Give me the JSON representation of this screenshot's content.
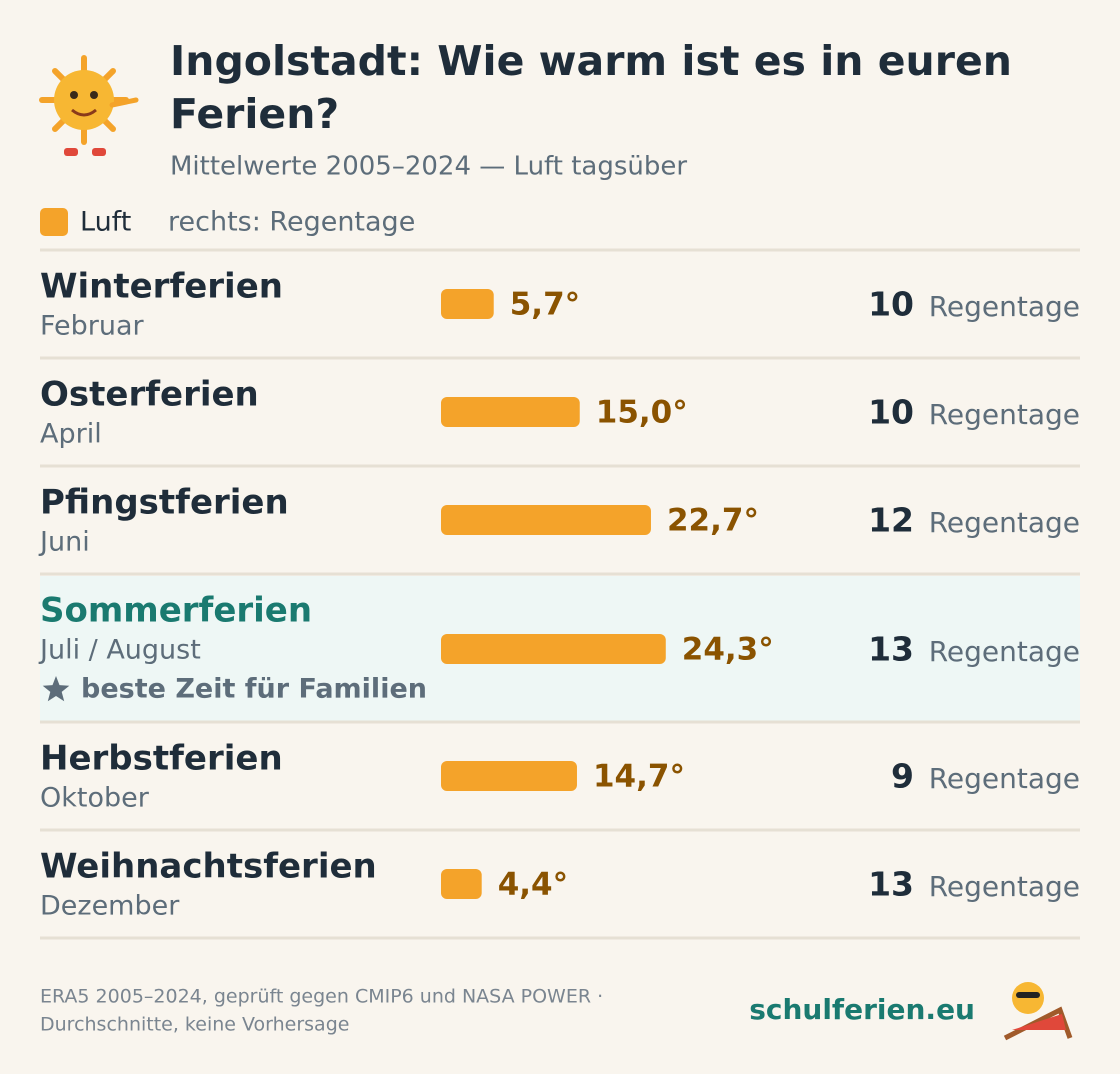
{
  "header": {
    "title_lines": [
      "Ingolstadt: Wie warm ist es in euren",
      "Ferien?"
    ],
    "subtitle": "Mittelwerte 2005–2024 — Luft tagsüber"
  },
  "chart_data": {
    "type": "bar",
    "categories": [
      "Winterferien",
      "Osterferien",
      "Pfingstferien",
      "Sommerferien",
      "Herbstferien",
      "Weihnachtsferien"
    ],
    "sublabels": [
      "Februar",
      "April",
      "Juni",
      "Juli / August",
      "Oktober",
      "Dezember"
    ],
    "highlights": [
      null,
      null,
      null,
      "beste Zeit für Familien",
      null,
      null
    ],
    "series": [
      {
        "name": "Luft",
        "color": "#f4a32a",
        "values": [
          5.7,
          15.0,
          22.7,
          24.3,
          14.7,
          4.4
        ],
        "value_labels": [
          "5,7°",
          "15,0°",
          "22,7°",
          "24,3°",
          "14,7°",
          "4,4°"
        ]
      }
    ],
    "legend_note": "rechts: Regentage",
    "rain_days": [
      10,
      10,
      12,
      13,
      9,
      13
    ],
    "rain_unit": "Regentage"
  },
  "footer": {
    "source_lines": [
      "ERA5 2005–2024, geprüft gegen CMIP6 und NASA POWER ·",
      "Durchschnitte, keine Vorhersage"
    ],
    "brand": "schulferien.eu"
  }
}
